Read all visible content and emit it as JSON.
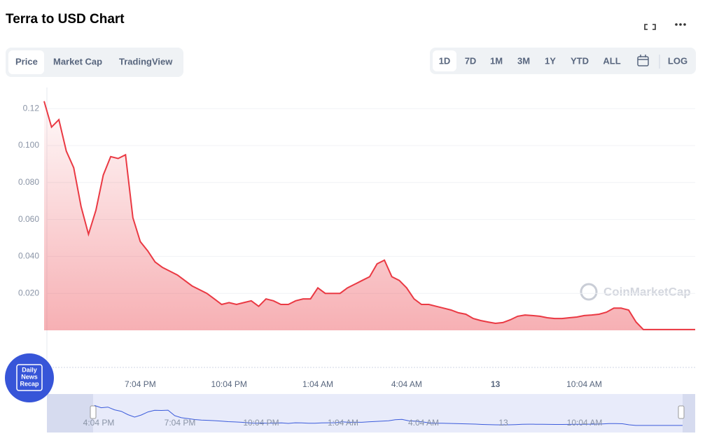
{
  "header": {
    "title": "Terra to USD Chart"
  },
  "tabs": [
    "Price",
    "Market Cap",
    "TradingView"
  ],
  "ranges": [
    "1D",
    "7D",
    "1M",
    "3M",
    "1Y",
    "YTD",
    "ALL"
  ],
  "log_button": "LOG",
  "watermark": "CoinMarketCap",
  "badge": [
    "Daily",
    "News",
    "Recap"
  ],
  "navigator": {
    "labels": [
      "4:04 PM",
      "7:04 PM",
      "10:04 PM",
      "1:04 AM",
      "4:04 AM",
      "13",
      "10:04 AM"
    ]
  },
  "chart_data": {
    "type": "area",
    "color": "#ea3943",
    "grid": true,
    "ylim": [
      0,
      0.13
    ],
    "yticks": [
      {
        "value": 0.02,
        "label": "0.020"
      },
      {
        "value": 0.04,
        "label": "0.040"
      },
      {
        "value": 0.06,
        "label": "0.060"
      },
      {
        "value": 0.08,
        "label": "0.080"
      },
      {
        "value": 0.1,
        "label": "0.100"
      },
      0.12
    ],
    "categories": [
      null,
      null,
      null,
      null,
      null,
      null,
      null,
      null,
      null,
      null,
      null,
      null,
      null,
      "7:04 PM",
      null,
      null,
      null,
      null,
      null,
      null,
      null,
      null,
      null,
      null,
      null,
      "10:04 PM",
      null,
      null,
      null,
      null,
      null,
      null,
      null,
      null,
      null,
      null,
      null,
      "1:04 AM",
      null,
      null,
      null,
      null,
      null,
      null,
      null,
      null,
      null,
      null,
      null,
      "4:04 AM",
      null,
      null,
      null,
      null,
      null,
      null,
      null,
      null,
      null,
      null,
      null,
      "13",
      null,
      null,
      null,
      null,
      null,
      null,
      null,
      null,
      null,
      null,
      null,
      "10:04 AM",
      null,
      null,
      null,
      null,
      null,
      null,
      null,
      null,
      null,
      null,
      null,
      null,
      null,
      null,
      null
    ],
    "values": [
      0.124,
      0.11,
      0.114,
      0.097,
      0.088,
      0.067,
      0.052,
      0.065,
      0.084,
      0.094,
      0.093,
      0.095,
      0.061,
      0.048,
      0.043,
      0.037,
      0.034,
      0.032,
      0.03,
      0.027,
      0.024,
      0.022,
      0.02,
      0.017,
      0.014,
      0.015,
      0.014,
      0.015,
      0.016,
      0.013,
      0.017,
      0.016,
      0.014,
      0.014,
      0.016,
      0.017,
      0.017,
      0.023,
      0.02,
      0.02,
      0.02,
      0.023,
      0.025,
      0.027,
      0.029,
      0.036,
      0.038,
      0.029,
      0.027,
      0.023,
      0.017,
      0.014,
      0.014,
      0.013,
      0.012,
      0.011,
      0.0095,
      0.0087,
      0.0064,
      0.0053,
      0.0045,
      0.0038,
      0.0042,
      0.0057,
      0.0076,
      0.0083,
      0.008,
      0.0076,
      0.0068,
      0.0064,
      0.0064,
      0.0068,
      0.0072,
      0.008,
      0.0083,
      0.0087,
      0.0098,
      0.012,
      0.012,
      0.011,
      0.0045,
      0.0004,
      0.0004,
      0.0004,
      0.0004,
      0.0004,
      0.0004,
      0.0004,
      0.0004
    ]
  }
}
